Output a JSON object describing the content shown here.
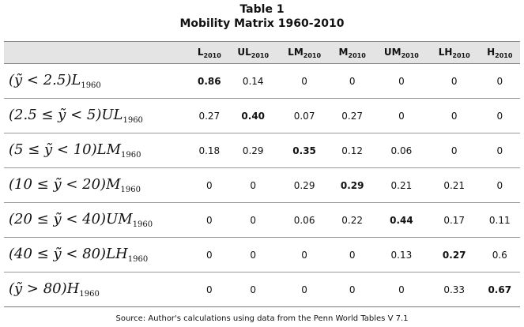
{
  "title": "Table 1",
  "subtitle": "Mobility Matrix 1960-2010",
  "columns": [
    {
      "label": "L",
      "sub": "2010"
    },
    {
      "label": "UL",
      "sub": "2010"
    },
    {
      "label": "LM",
      "sub": "2010"
    },
    {
      "label": "M",
      "sub": "2010"
    },
    {
      "label": "UM",
      "sub": "2010"
    },
    {
      "label": "LH",
      "sub": "2010"
    },
    {
      "label": "H",
      "sub": "2010"
    }
  ],
  "rows": [
    {
      "cond": "(ỹ < 2.5)",
      "abbr": "L",
      "sub": "1960",
      "values": [
        "0.86",
        "0.14",
        "0",
        "0",
        "0",
        "0",
        "0"
      ],
      "bold_index": 0
    },
    {
      "cond": "(2.5 ≤ ỹ < 5)",
      "abbr": "UL",
      "sub": "1960",
      "values": [
        "0.27",
        "0.40",
        "0.07",
        "0.27",
        "0",
        "0",
        "0"
      ],
      "bold_index": 1
    },
    {
      "cond": "(5 ≤ ỹ < 10)",
      "abbr": "LM",
      "sub": "1960",
      "values": [
        "0.18",
        "0.29",
        "0.35",
        "0.12",
        "0.06",
        "0",
        "0"
      ],
      "bold_index": 2
    },
    {
      "cond": "(10 ≤ ỹ < 20)",
      "abbr": "M",
      "sub": "1960",
      "values": [
        "0",
        "0",
        "0.29",
        "0.29",
        "0.21",
        "0.21",
        "0"
      ],
      "bold_index": 3
    },
    {
      "cond": "(20 ≤ ỹ < 40)",
      "abbr": "UM",
      "sub": "1960",
      "values": [
        "0",
        "0",
        "0.06",
        "0.22",
        "0.44",
        "0.17",
        "0.11"
      ],
      "bold_index": 4
    },
    {
      "cond": "(40 ≤ ỹ < 80)",
      "abbr": "LH",
      "sub": "1960",
      "values": [
        "0",
        "0",
        "0",
        "0",
        "0.13",
        "0.27",
        "0.6"
      ],
      "bold_index": 5
    },
    {
      "cond": "(ỹ > 80)",
      "abbr": "H",
      "sub": "1960",
      "values": [
        "0",
        "0",
        "0",
        "0",
        "0",
        "0.33",
        "0.67"
      ],
      "bold_index": 6
    }
  ],
  "source": "Source: Author's calculations using data from the Penn World Tables V 7.1"
}
